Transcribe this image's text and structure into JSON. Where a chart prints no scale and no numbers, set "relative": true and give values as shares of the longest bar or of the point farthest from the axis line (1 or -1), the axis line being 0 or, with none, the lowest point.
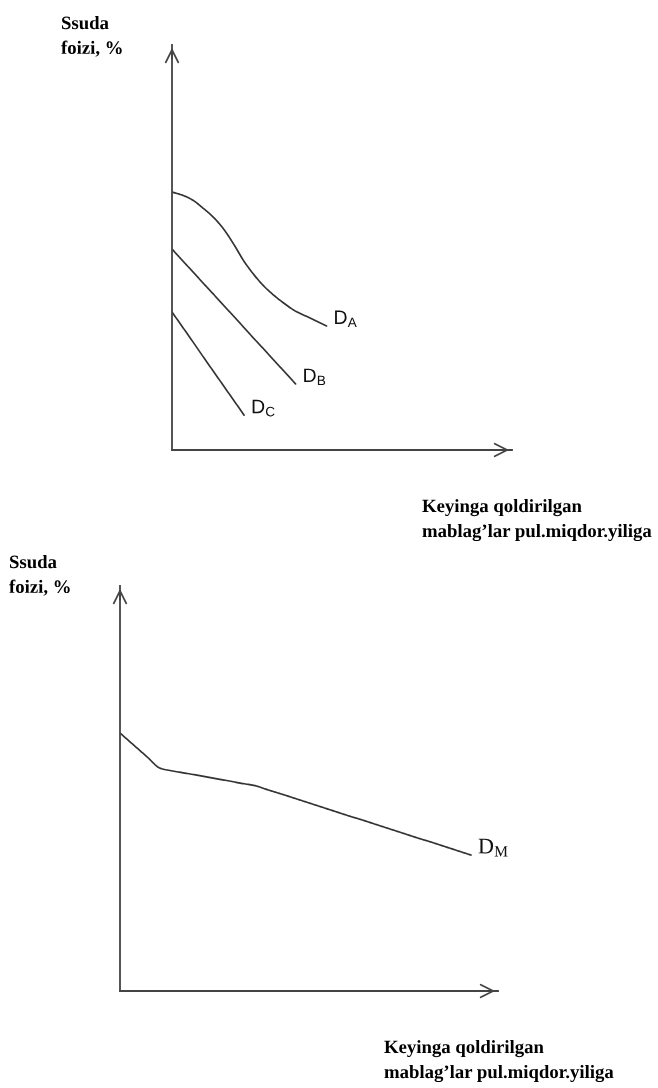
{
  "chart_data": [
    {
      "type": "line",
      "relative": true,
      "line_style": "solid",
      "ylabel": "Ssuda\nfoizi, %",
      "xlabel": "Keyinga qoldirilgan\nmablag’lar pul.miqdor.yiliga",
      "categories": [
        null,
        null,
        null,
        null,
        null,
        null,
        null,
        null,
        null,
        null,
        null,
        null,
        null,
        null,
        null,
        null,
        null,
        null,
        null,
        null,
        null,
        null,
        null,
        null,
        null,
        null,
        null,
        null,
        null,
        null,
        null,
        null,
        null,
        null
      ],
      "series": [
        {
          "name": "D$_{A}$",
          "color": "#333333",
          "values": [
            1,
            0.988,
            0.969,
            0.938,
            0.903,
            0.857,
            0.797,
            0.731,
            0.677,
            0.632,
            0.596,
            0.565,
            0.538,
            0.519,
            0.5,
            0.481,
            null,
            null,
            null,
            null,
            null,
            null,
            null,
            null,
            null,
            null,
            null,
            null,
            null,
            null,
            null,
            null,
            null,
            null
          ]
        },
        {
          "name": "D$_{B}$",
          "color": "#333333",
          "values": [
            0.779,
            0.735,
            0.692,
            0.648,
            0.605,
            0.561,
            0.518,
            0.474,
            0.43,
            0.387,
            0.343,
            0.3,
            0.256,
            null,
            null,
            null,
            null,
            null,
            null,
            null,
            null,
            null,
            null,
            null,
            null,
            null,
            null,
            null,
            null,
            null,
            null,
            null,
            null,
            null
          ]
        },
        {
          "name": "D$_{C}$",
          "color": "#333333",
          "values": [
            0.535,
            0.478,
            0.421,
            0.363,
            0.306,
            0.249,
            0.192,
            0.135,
            null,
            null,
            null,
            null,
            null,
            null,
            null,
            null,
            null,
            null,
            null,
            null,
            null,
            null,
            null,
            null,
            null,
            null,
            null,
            null,
            null,
            null,
            null,
            null,
            null,
            null
          ]
        }
      ]
    },
    {
      "type": "line",
      "relative": true,
      "line_style": "solid",
      "ylabel": "Ssuda\nfoizi, %",
      "xlabel": "Keyinga qoldirilgan\nmablag’lar pul.miqdor.yiliga",
      "categories": [
        null,
        null,
        null,
        null,
        null,
        null,
        null,
        null,
        null,
        null,
        null,
        null,
        null,
        null,
        null,
        null,
        null,
        null,
        null,
        null,
        null,
        null,
        null,
        null,
        null,
        null,
        null,
        null,
        null
      ],
      "series": [
        {
          "name": "D$_{M}$",
          "color": "#333333",
          "values": [
            1,
            0.954,
            0.908,
            0.863,
            0.852,
            0.843,
            0.834,
            0.824,
            0.815,
            0.805,
            0.796,
            0.779,
            0.763,
            0.746,
            0.729,
            0.712,
            0.695,
            0.678,
            0.662,
            0.645,
            0.628,
            0.611,
            0.594,
            0.578,
            0.561,
            0.544,
            0.527,
            null,
            null
          ]
        }
      ]
    }
  ]
}
